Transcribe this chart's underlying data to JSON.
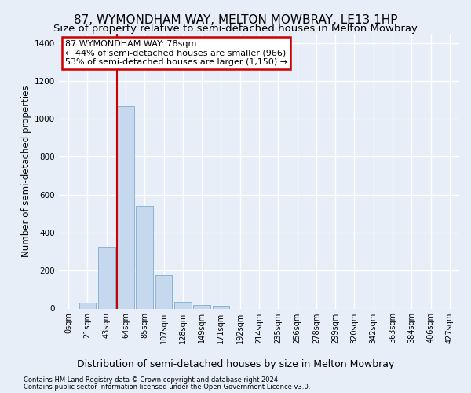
{
  "title": "87, WYMONDHAM WAY, MELTON MOWBRAY, LE13 1HP",
  "subtitle": "Size of property relative to semi-detached houses in Melton Mowbray",
  "xlabel": "Distribution of semi-detached houses by size in Melton Mowbray",
  "ylabel": "Number of semi-detached properties",
  "footnote1": "Contains HM Land Registry data © Crown copyright and database right 2024.",
  "footnote2": "Contains public sector information licensed under the Open Government Licence v3.0.",
  "bar_labels": [
    "0sqm",
    "21sqm",
    "43sqm",
    "64sqm",
    "85sqm",
    "107sqm",
    "128sqm",
    "149sqm",
    "171sqm",
    "192sqm",
    "214sqm",
    "235sqm",
    "256sqm",
    "278sqm",
    "299sqm",
    "320sqm",
    "342sqm",
    "363sqm",
    "384sqm",
    "406sqm",
    "427sqm"
  ],
  "bar_values": [
    0,
    30,
    325,
    1065,
    540,
    175,
    37,
    20,
    13,
    0,
    0,
    0,
    0,
    0,
    0,
    0,
    0,
    0,
    0,
    0,
    0
  ],
  "bar_color": "#c5d8ee",
  "bar_edge_color": "#7aaed4",
  "redline_bin": 3,
  "annotation_line1": "87 WYMONDHAM WAY: 78sqm",
  "annotation_line2": "← 44% of semi-detached houses are smaller (966)",
  "annotation_line3": "53% of semi-detached houses are larger (1,150) →",
  "annotation_box_color": "#ffffff",
  "annotation_border_color": "#cc0000",
  "ylim": [
    0,
    1450
  ],
  "yticks": [
    0,
    200,
    400,
    600,
    800,
    1000,
    1200,
    1400
  ],
  "bg_color": "#e8eef8",
  "grid_color": "#ffffff",
  "title_fontsize": 11,
  "subtitle_fontsize": 9.5,
  "ylabel_fontsize": 8.5,
  "xlabel_fontsize": 9,
  "tick_fontsize": 7,
  "annot_fontsize": 8,
  "footnote_fontsize": 6
}
